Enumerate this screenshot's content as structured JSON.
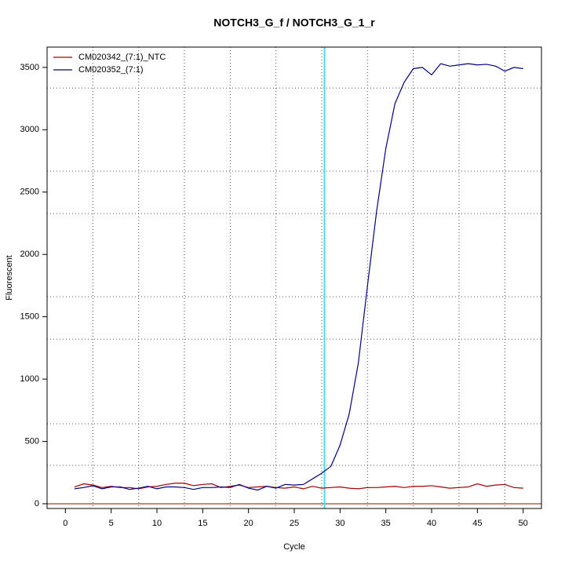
{
  "chart_data": {
    "type": "line",
    "title": "NOTCH3_G_f / NOTCH3_G_1_r",
    "x_label": "Cycle",
    "y_label": "Fluorescent",
    "x": [
      1,
      2,
      3,
      4,
      5,
      6,
      7,
      8,
      9,
      10,
      11,
      12,
      13,
      14,
      15,
      16,
      17,
      18,
      19,
      20,
      21,
      22,
      23,
      24,
      25,
      26,
      27,
      28,
      29,
      30,
      31,
      32,
      33,
      34,
      35,
      36,
      37,
      38,
      39,
      40,
      41,
      42,
      43,
      44,
      45,
      46,
      47,
      48,
      49,
      50
    ],
    "series": [
      {
        "name": "CM020342_(7:1)_NTC",
        "color": "#a50000",
        "values": [
          135,
          160,
          150,
          130,
          140,
          130,
          130,
          120,
          135,
          140,
          155,
          165,
          165,
          145,
          155,
          160,
          130,
          140,
          150,
          130,
          135,
          140,
          130,
          125,
          135,
          120,
          140,
          125,
          130,
          135,
          125,
          120,
          130,
          130,
          135,
          140,
          130,
          140,
          140,
          145,
          135,
          125,
          130,
          135,
          160,
          140,
          150,
          155,
          130,
          125
        ]
      },
      {
        "name": "CM020352_(7:1)",
        "color": "#00008b",
        "values": [
          120,
          130,
          145,
          120,
          135,
          135,
          115,
          125,
          140,
          120,
          135,
          135,
          130,
          115,
          130,
          130,
          135,
          130,
          155,
          125,
          110,
          140,
          125,
          155,
          150,
          155,
          200,
          245,
          300,
          470,
          720,
          1130,
          1750,
          2350,
          2850,
          3210,
          3380,
          3490,
          3500,
          3440,
          3530,
          3510,
          3520,
          3530,
          3520,
          3525,
          3510,
          3470,
          3500,
          3490
        ]
      }
    ],
    "xlim": [
      -2,
      52
    ],
    "ylim": [
      -38,
      3663
    ],
    "xticks": [
      0,
      5,
      10,
      15,
      20,
      25,
      30,
      35,
      40,
      45,
      50
    ],
    "yticks": [
      0,
      500,
      1000,
      1500,
      2000,
      2500,
      3000,
      3500
    ],
    "xgrid": [
      3,
      8,
      13,
      18,
      23,
      28,
      33,
      38,
      43,
      48
    ],
    "ygrid": [
      308,
      642,
      1321,
      1661,
      2328,
      2668,
      3335
    ],
    "vline": {
      "x": 28.3,
      "color": "#40e0f0"
    },
    "hline": {
      "y": 0,
      "color": "#a50000"
    },
    "legend": "top-left"
  }
}
